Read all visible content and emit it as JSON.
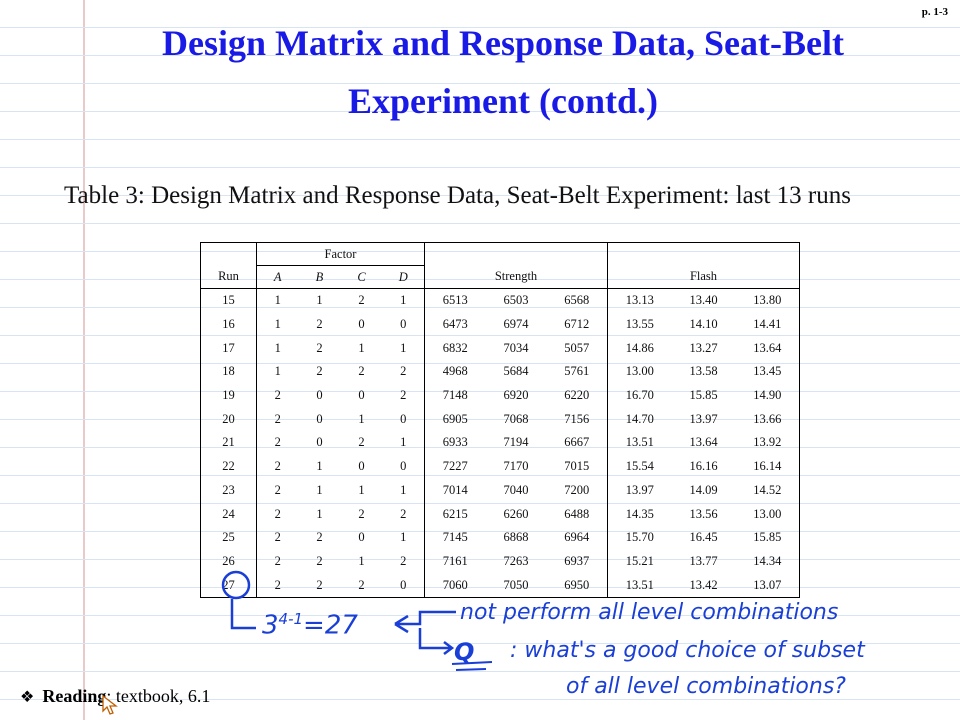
{
  "page_number": "p. 1-3",
  "title_line1": "Design Matrix and Response Data, Seat-Belt",
  "title_line2": "Experiment (contd.)",
  "caption": "Table 3: Design Matrix and Response Data, Seat-Belt Experiment: last 13 runs",
  "table": {
    "group_factor": "Factor",
    "headers": [
      "Run",
      "A",
      "B",
      "C",
      "D",
      "Strength",
      "Flash"
    ],
    "rows": [
      [
        "15",
        "1",
        "1",
        "2",
        "1",
        "6513",
        "6503",
        "6568",
        "13.13",
        "13.40",
        "13.80"
      ],
      [
        "16",
        "1",
        "2",
        "0",
        "0",
        "6473",
        "6974",
        "6712",
        "13.55",
        "14.10",
        "14.41"
      ],
      [
        "17",
        "1",
        "2",
        "1",
        "1",
        "6832",
        "7034",
        "5057",
        "14.86",
        "13.27",
        "13.64"
      ],
      [
        "18",
        "1",
        "2",
        "2",
        "2",
        "4968",
        "5684",
        "5761",
        "13.00",
        "13.58",
        "13.45"
      ],
      [
        "19",
        "2",
        "0",
        "0",
        "2",
        "7148",
        "6920",
        "6220",
        "16.70",
        "15.85",
        "14.90"
      ],
      [
        "20",
        "2",
        "0",
        "1",
        "0",
        "6905",
        "7068",
        "7156",
        "14.70",
        "13.97",
        "13.66"
      ],
      [
        "21",
        "2",
        "0",
        "2",
        "1",
        "6933",
        "7194",
        "6667",
        "13.51",
        "13.64",
        "13.92"
      ],
      [
        "22",
        "2",
        "1",
        "0",
        "0",
        "7227",
        "7170",
        "7015",
        "15.54",
        "16.16",
        "16.14"
      ],
      [
        "23",
        "2",
        "1",
        "1",
        "1",
        "7014",
        "7040",
        "7200",
        "13.97",
        "14.09",
        "14.52"
      ],
      [
        "24",
        "2",
        "1",
        "2",
        "2",
        "6215",
        "6260",
        "6488",
        "14.35",
        "13.56",
        "13.00"
      ],
      [
        "25",
        "2",
        "2",
        "0",
        "1",
        "7145",
        "6868",
        "6964",
        "15.70",
        "16.45",
        "15.85"
      ],
      [
        "26",
        "2",
        "2",
        "1",
        "2",
        "7161",
        "7263",
        "6937",
        "15.21",
        "13.77",
        "14.34"
      ],
      [
        "27",
        "2",
        "2",
        "2",
        "0",
        "7060",
        "7050",
        "6950",
        "13.51",
        "13.42",
        "13.07"
      ]
    ]
  },
  "annotations": {
    "formula_base": "3",
    "formula_exp": "4-1",
    "formula_result": "=27",
    "note_line1": "not perform all level combinations",
    "q_label": "Q",
    "note_line2": ": what's a good choice of subset",
    "note_line3": "of all level combinations?"
  },
  "reading": {
    "bullet": "❖",
    "label": "Reading",
    "text": ": textbook, 6.1"
  },
  "colors": {
    "title": "#1a1ae6",
    "ink": "#1a3fd6"
  }
}
